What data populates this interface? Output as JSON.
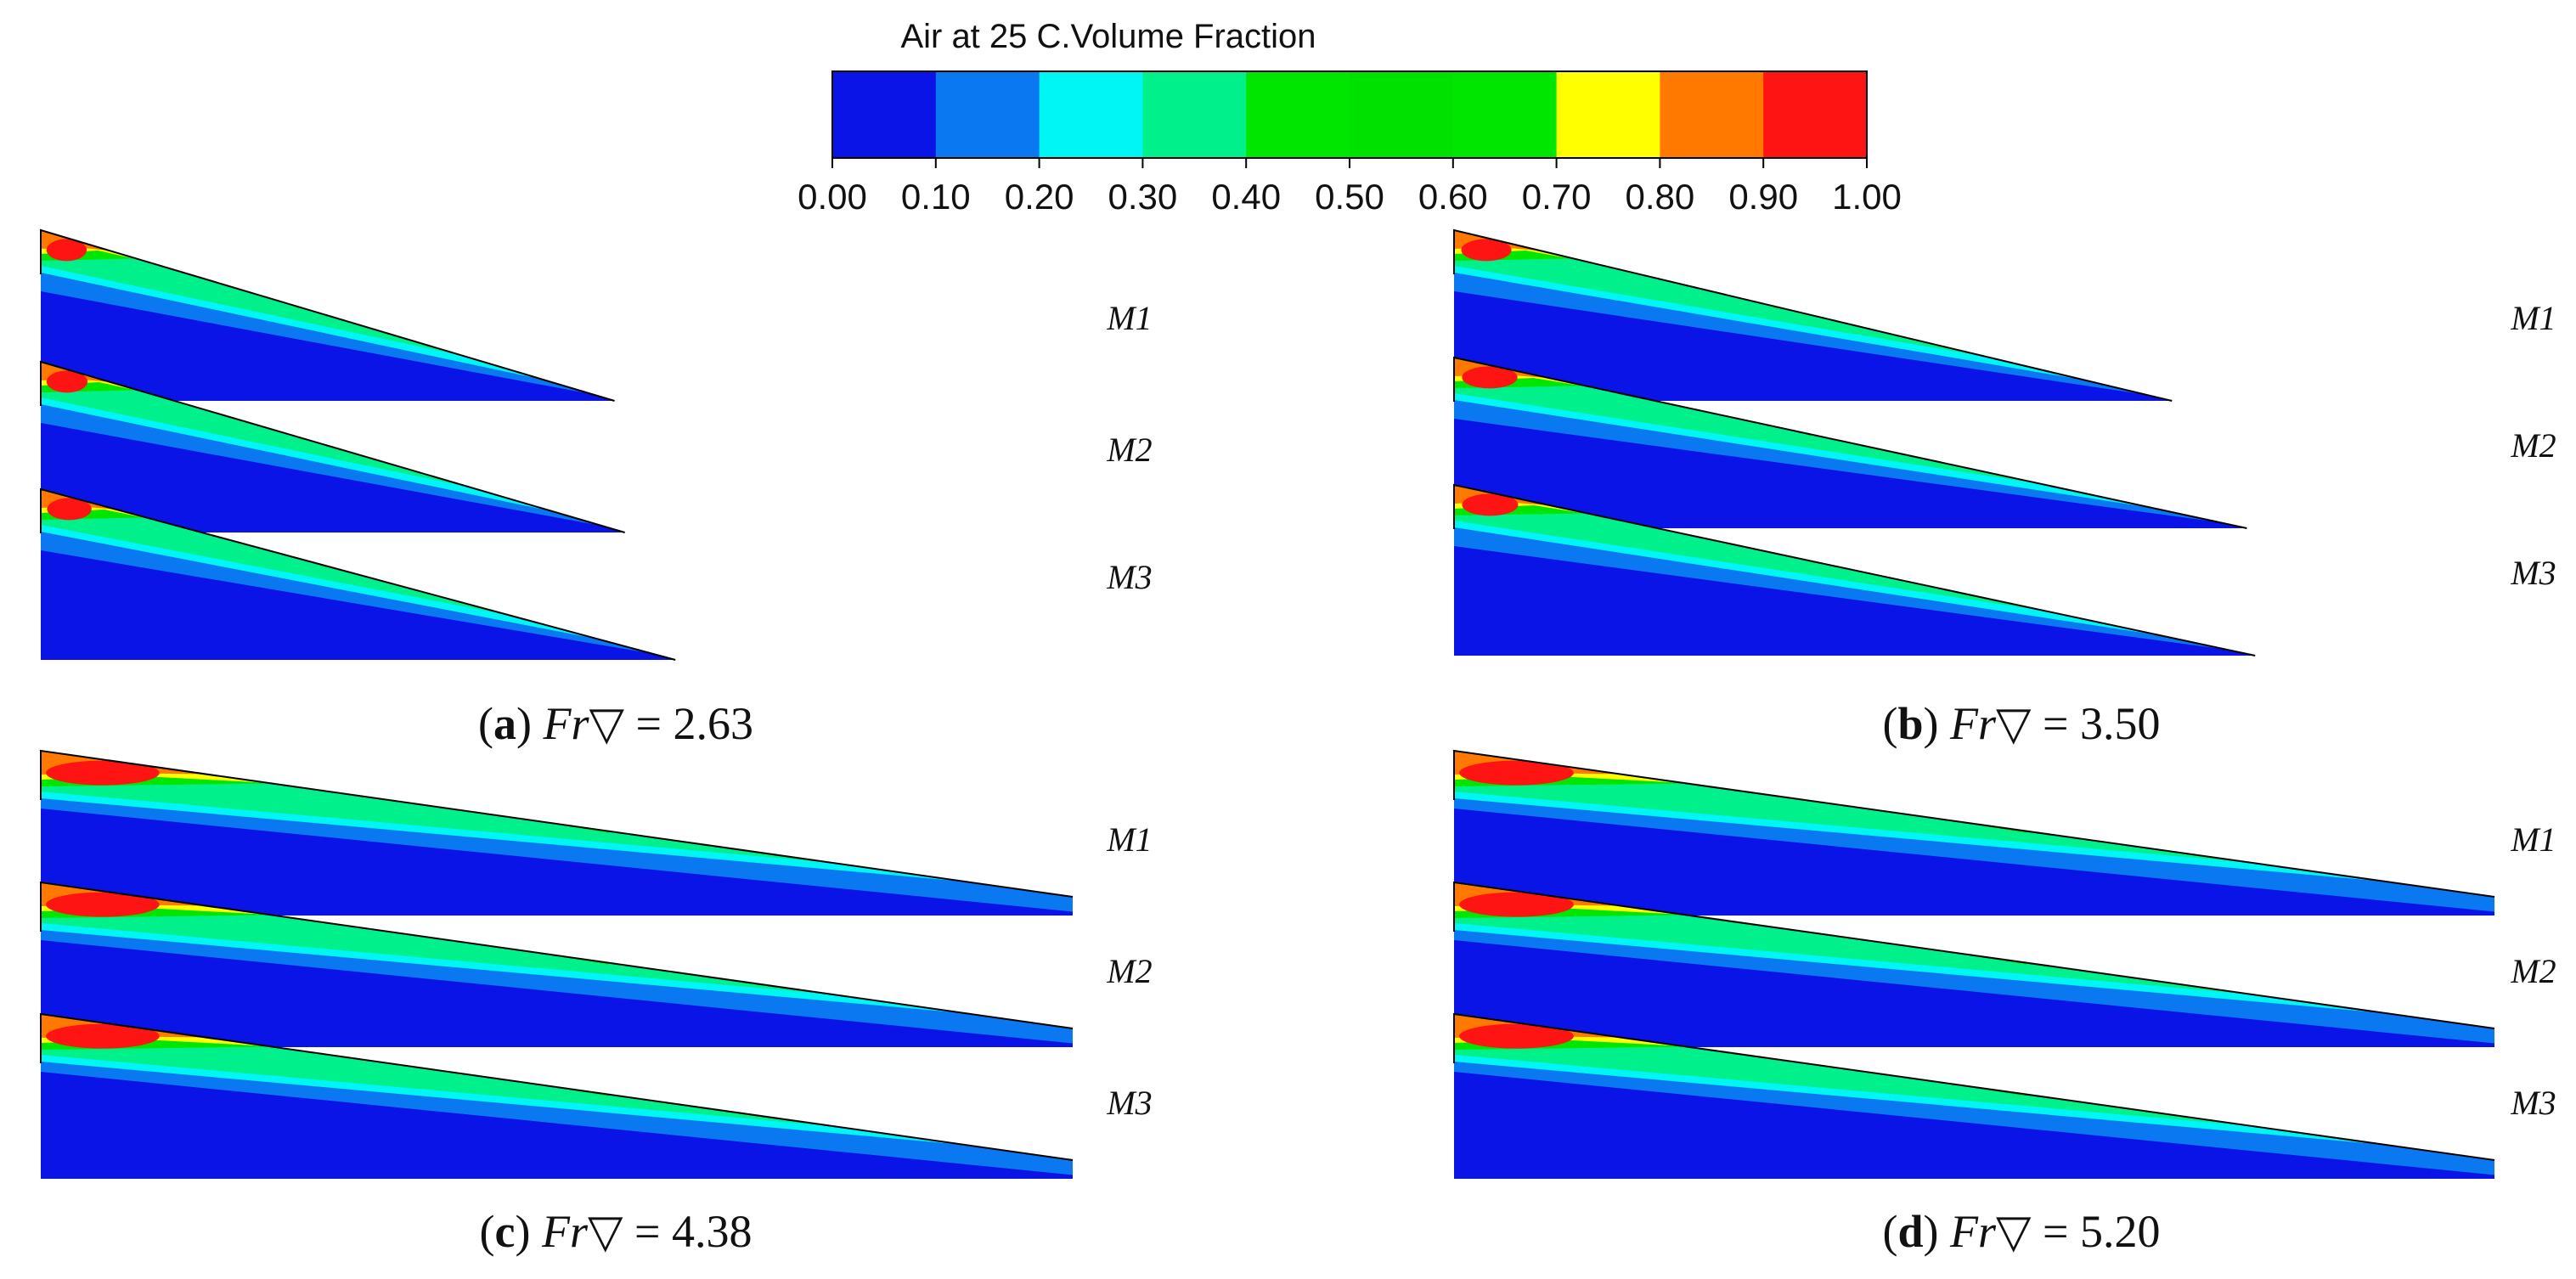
{
  "colorbar": {
    "title": "Air at 25 C.Volume Fraction",
    "ticks": [
      "0.00",
      "0.10",
      "0.20",
      "0.30",
      "0.40",
      "0.50",
      "0.60",
      "0.70",
      "0.80",
      "0.90",
      "1.00"
    ],
    "band_colors": [
      "#0a14e6",
      "#0a78f0",
      "#00f5f5",
      "#00f08c",
      "#00e600",
      "#00e100",
      "#00e600",
      "#ffff00",
      "#ff7800",
      "#ff1414"
    ]
  },
  "panels": [
    {
      "id": "a",
      "caption": {
        "letter": "a",
        "symbol": "Fr▽",
        "equals": " = ",
        "value": "2.63"
      },
      "models": [
        {
          "label": "M1",
          "extent": 0.556
        },
        {
          "label": "M2",
          "extent": 0.566
        },
        {
          "label": "M3",
          "extent": 0.615
        }
      ]
    },
    {
      "id": "b",
      "caption": {
        "letter": "b",
        "symbol": "Fr▽",
        "equals": " = ",
        "value": "3.50"
      },
      "models": [
        {
          "label": "M1",
          "extent": 0.69
        },
        {
          "label": "M2",
          "extent": 0.762
        },
        {
          "label": "M3",
          "extent": 0.77
        }
      ]
    },
    {
      "id": "c",
      "caption": {
        "letter": "c",
        "symbol": "Fr▽",
        "equals": " = ",
        "value": "4.38"
      },
      "models": [
        {
          "label": "M1",
          "extent": 1.0
        },
        {
          "label": "M2",
          "extent": 1.0
        },
        {
          "label": "M3",
          "extent": 1.0
        }
      ]
    },
    {
      "id": "d",
      "caption": {
        "letter": "d",
        "symbol": "Fr▽",
        "equals": " = ",
        "value": "5.20"
      },
      "models": [
        {
          "label": "M1",
          "extent": 1.0
        },
        {
          "label": "M2",
          "extent": 1.0
        },
        {
          "label": "M3",
          "extent": 1.0
        }
      ]
    }
  ]
}
